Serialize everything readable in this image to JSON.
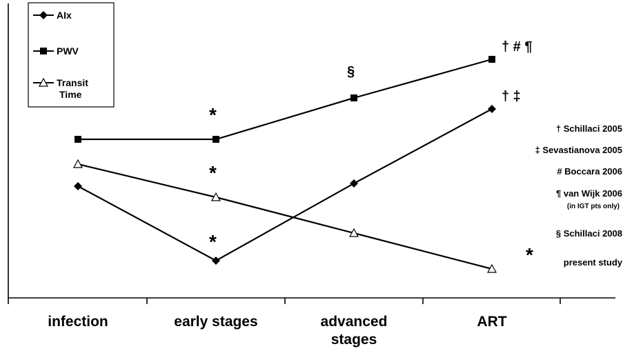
{
  "chart_data": {
    "type": "line",
    "categories": [
      "infection",
      "early stages",
      "advanced stages",
      "ART"
    ],
    "category_lines": [
      [
        "infection"
      ],
      [
        "early stages"
      ],
      [
        "advanced",
        "stages"
      ],
      [
        "ART"
      ]
    ],
    "series": [
      {
        "name": "AIx",
        "marker": "diamond",
        "values": [
          0.4,
          0.13,
          0.41,
          0.68
        ]
      },
      {
        "name": "PWV",
        "marker": "square",
        "values": [
          0.57,
          0.57,
          0.72,
          0.86
        ]
      },
      {
        "name": "Transit Time",
        "name_lines": [
          "Transit",
          "Time"
        ],
        "marker": "triangle-open",
        "values": [
          0.48,
          0.36,
          0.23,
          0.1
        ]
      }
    ],
    "annotations": [
      {
        "text": "*",
        "category": 1,
        "y": 0.67
      },
      {
        "text": "*",
        "category": 1,
        "y": 0.46
      },
      {
        "text": "*",
        "category": 1,
        "y": 0.21
      },
      {
        "text": "§",
        "category": 2,
        "y": 0.8
      },
      {
        "text": "† # ¶",
        "category": 3,
        "y": 0.89
      },
      {
        "text": "† ‡",
        "category": 3,
        "y": 0.71
      }
    ],
    "notes": [
      {
        "symbol": "†",
        "text": "Schillaci 2005"
      },
      {
        "symbol": "‡",
        "text": "Sevastianova 2005"
      },
      {
        "symbol": "#",
        "text": "Boccara 2006"
      },
      {
        "symbol": "¶",
        "text": "van Wijk 2006",
        "subtext": "(in IGT pts only)"
      },
      {
        "symbol": "§",
        "text": "Schillaci 2008"
      },
      {
        "symbol": "*",
        "text": "present study"
      }
    ],
    "ylim": [
      0,
      1
    ],
    "xlabel": "",
    "ylabel": "",
    "grid": false,
    "legend_position": "top-left",
    "colors": {
      "line": "#000000",
      "background": "#ffffff"
    }
  }
}
